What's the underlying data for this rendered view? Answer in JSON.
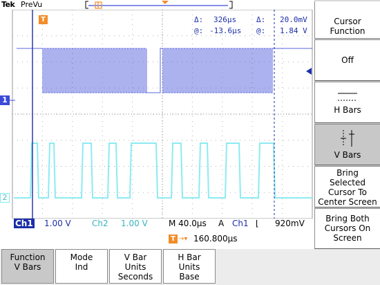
{
  "header": {
    "brand": "Tek",
    "mode": "PreVu",
    "trigger_marker": "T"
  },
  "readouts": {
    "delta_time_label": "Δ:",
    "delta_time": "326µs",
    "delta_volt_label": "Δ:",
    "delta_volt": "20.0mV",
    "at_time_label": "@:",
    "at_time": "-13.6µs",
    "at_volt_label": "@:",
    "at_volt": "1.84 V"
  },
  "status": {
    "ch1_label": "Ch1",
    "ch1_scale": "1.00 V",
    "ch2_label": "Ch2",
    "ch2_scale": "1.00 V",
    "timebase": "M 40.0µs",
    "trig_mode": "A",
    "trig_source": "Ch1",
    "trig_slope": "⌊",
    "trig_level": "920mV",
    "trig_pos_marker": "T",
    "trig_position": "160.800µs"
  },
  "channel_markers": {
    "ch1": "1",
    "ch2": "2"
  },
  "side_menu": {
    "title_line1": "Cursor",
    "title_line2": "Function",
    "off": "Off",
    "hbars": "H Bars",
    "vbars": "V Bars",
    "bring_selected_l1": "Bring",
    "bring_selected_l2": "Selected",
    "bring_selected_l3": "Cursor To",
    "bring_selected_l4": "Center Screen",
    "bring_both_l1": "Bring Both",
    "bring_both_l2": "Cursors On",
    "bring_both_l3": "Screen"
  },
  "bottom_menu": {
    "function_l1": "Function",
    "function_l2": "V Bars",
    "mode_l1": "Mode",
    "mode_l2": "Ind",
    "vbar_units_l1": "V Bar",
    "vbar_units_l2": "Units",
    "vbar_units_l3": "Seconds",
    "hbar_units_l1": "H Bar",
    "hbar_units_l2": "Units",
    "hbar_units_l3": "Base"
  },
  "colors": {
    "ch1": "#3b4ad8",
    "ch2": "#7fe9ef",
    "readout": "#1c2ea8",
    "trigger": "#f28c28"
  }
}
